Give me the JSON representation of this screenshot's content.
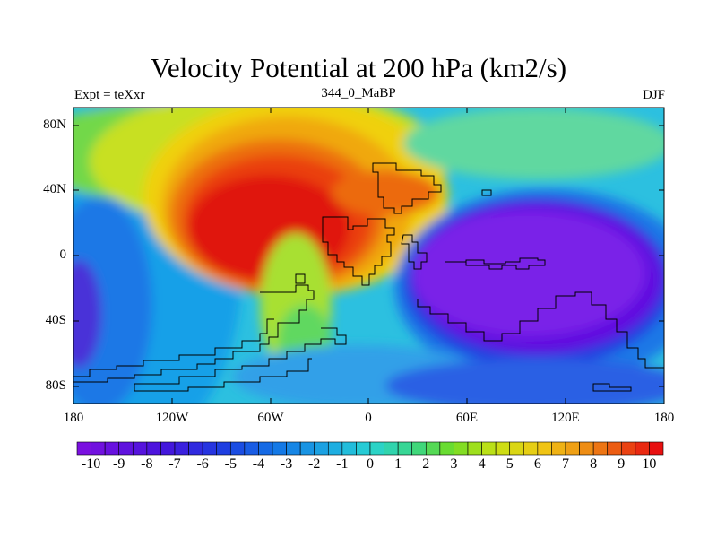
{
  "title": "Velocity Potential at 200 hPa (km2/s)",
  "subtitle_left": "Expt = teXxr",
  "subtitle_center": "344_0_MaBP",
  "subtitle_right": "DJF",
  "map": {
    "lat_labels": [
      "80N",
      "40N",
      "0",
      "40S",
      "80S"
    ],
    "lon_labels": [
      "180",
      "120W",
      "60W",
      "0",
      "60E",
      "120E",
      "180"
    ],
    "lat_range": [
      -90,
      90
    ],
    "lon_range": [
      -180,
      180
    ]
  },
  "colorbar": {
    "labels": [
      "-10",
      "-9",
      "-8",
      "-7",
      "-6",
      "-5",
      "-4",
      "-3",
      "-2",
      "-1",
      "0",
      "1",
      "2",
      "3",
      "4",
      "5",
      "6",
      "7",
      "8",
      "9",
      "10"
    ],
    "range": [
      -10.5,
      10.5
    ],
    "interval": 0.5
  },
  "colors": {
    "low": "#7a10e0",
    "mid": "#33d0cc",
    "high": "#e81010"
  }
}
